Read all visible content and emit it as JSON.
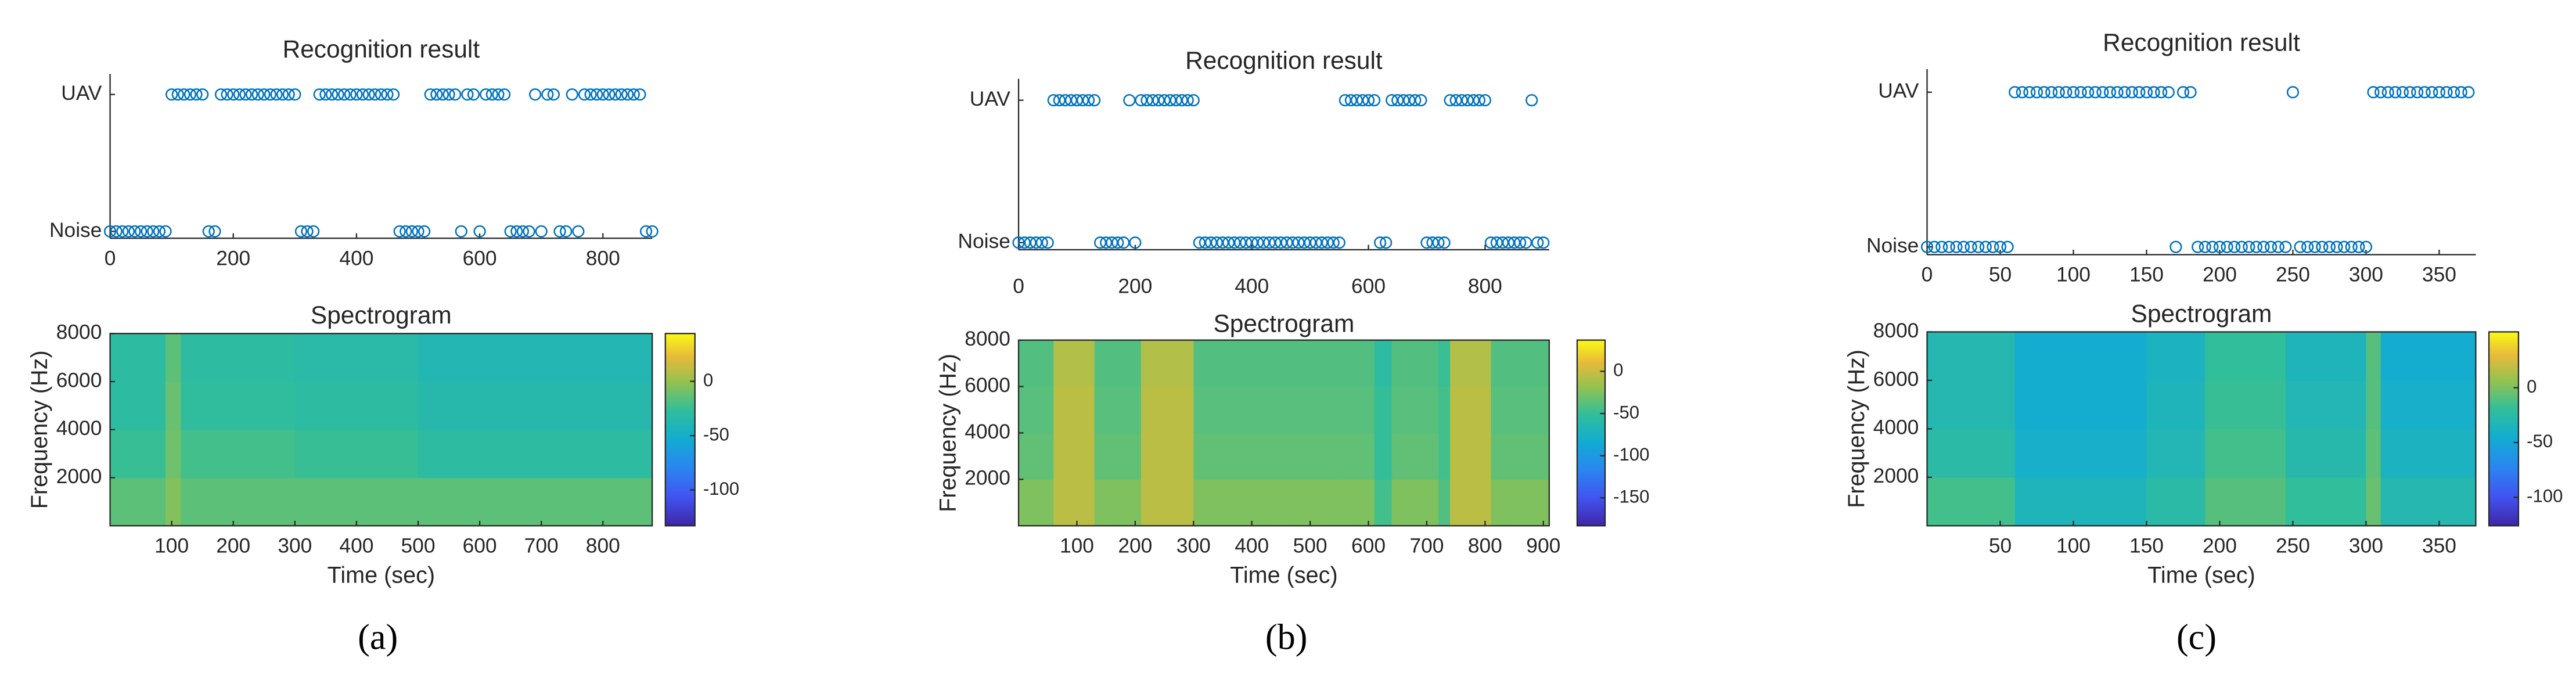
{
  "chart_data": [
    {
      "type": "scatter",
      "title": "Recognition result",
      "color": "#0072bd",
      "x": [
        0,
        10,
        20,
        30,
        40,
        50,
        60,
        70,
        80,
        90,
        100,
        110,
        120,
        130,
        140,
        150,
        160,
        170,
        180,
        190,
        200,
        210,
        220,
        230,
        240,
        250,
        260,
        270,
        280,
        290,
        300,
        310,
        320,
        330,
        340,
        350,
        360,
        370,
        380,
        390,
        400,
        410,
        420,
        430,
        440,
        450,
        460,
        470,
        480,
        490,
        500,
        510,
        520,
        530,
        540,
        550,
        560,
        570,
        580,
        590,
        600,
        610,
        620,
        630,
        640,
        650,
        660,
        670,
        680,
        690,
        700,
        710,
        720,
        730,
        740,
        750,
        760,
        770,
        780,
        790,
        800,
        810,
        820,
        830,
        840,
        850,
        860,
        870,
        880
      ],
      "values": [
        0,
        0,
        0,
        0,
        0,
        0,
        0,
        0,
        0,
        0,
        1,
        1,
        1,
        1,
        1,
        1,
        0,
        0,
        1,
        1,
        1,
        1,
        1,
        1,
        1,
        1,
        1,
        1,
        1,
        1,
        1,
        0,
        0,
        0,
        1,
        1,
        1,
        1,
        1,
        1,
        1,
        1,
        1,
        1,
        1,
        1,
        1,
        0,
        0,
        0,
        0,
        0,
        1,
        1,
        1,
        1,
        1,
        0,
        1,
        1,
        0,
        1,
        1,
        1,
        1,
        0,
        0,
        0,
        0,
        1,
        0,
        1,
        1,
        0,
        0,
        1,
        0,
        1,
        1,
        1,
        1,
        1,
        1,
        1,
        1,
        1,
        1,
        0,
        0
      ],
      "xlim": [
        0,
        880
      ],
      "xticks": [
        0,
        200,
        400,
        600,
        800
      ],
      "ylim": [
        -0.05,
        1.15
      ],
      "yticks": [
        {
          "value": 0,
          "label": "Noise"
        },
        {
          "value": 1,
          "label": "UAV"
        }
      ]
    },
    {
      "type": "heatmap",
      "title": "Spectrogram",
      "xlabel": "Time (sec)",
      "ylabel": "Frequency (Hz)",
      "colormap": "parula",
      "x_edges": [
        0,
        90,
        115,
        300,
        500,
        880
      ],
      "y_edges": [
        0,
        2000,
        4000,
        6000,
        8000
      ],
      "values": [
        [
          -15,
          -5,
          -15,
          -15,
          -15
        ],
        [
          -25,
          -10,
          -22,
          -25,
          -30
        ],
        [
          -30,
          -12,
          -28,
          -30,
          -35
        ],
        [
          -30,
          -15,
          -30,
          -33,
          -38
        ]
      ],
      "xlim": [
        0,
        880
      ],
      "xticks": [
        100,
        200,
        300,
        400,
        500,
        600,
        700,
        800
      ],
      "ylim": [
        0,
        8000
      ],
      "yticks": [
        2000,
        4000,
        6000,
        8000
      ],
      "clim": [
        -133,
        44
      ],
      "cticks": [
        0,
        -50,
        -100
      ]
    },
    {
      "type": "scatter",
      "title": "Recognition result",
      "color": "#0072bd",
      "x": [
        0,
        10,
        20,
        30,
        40,
        50,
        60,
        70,
        80,
        90,
        100,
        110,
        120,
        130,
        140,
        150,
        160,
        170,
        180,
        190,
        200,
        210,
        220,
        230,
        240,
        250,
        260,
        270,
        280,
        290,
        300,
        310,
        320,
        330,
        340,
        350,
        360,
        370,
        380,
        390,
        400,
        410,
        420,
        430,
        440,
        450,
        460,
        470,
        480,
        490,
        500,
        510,
        520,
        530,
        540,
        550,
        560,
        570,
        580,
        590,
        600,
        610,
        620,
        630,
        640,
        650,
        660,
        670,
        680,
        690,
        700,
        710,
        720,
        730,
        740,
        750,
        760,
        770,
        780,
        790,
        800,
        810,
        820,
        830,
        840,
        850,
        860,
        870,
        880,
        890,
        900
      ],
      "values": [
        0,
        0,
        0,
        0,
        0,
        0,
        1,
        1,
        1,
        1,
        1,
        1,
        1,
        1,
        0,
        0,
        0,
        0,
        0,
        1,
        0,
        1,
        1,
        1,
        1,
        1,
        1,
        1,
        1,
        1,
        1,
        0,
        0,
        0,
        0,
        0,
        0,
        0,
        0,
        0,
        0,
        0,
        0,
        0,
        0,
        0,
        0,
        0,
        0,
        0,
        0,
        0,
        0,
        0,
        0,
        0,
        1,
        1,
        1,
        1,
        1,
        1,
        0,
        0,
        1,
        1,
        1,
        1,
        1,
        1,
        0,
        0,
        0,
        0,
        1,
        1,
        1,
        1,
        1,
        1,
        1,
        0,
        0,
        0,
        0,
        0,
        0,
        0,
        1,
        0,
        0
      ],
      "xlim": [
        0,
        910
      ],
      "xticks": [
        0,
        200,
        400,
        600,
        800
      ],
      "ylim": [
        -0.05,
        1.15
      ],
      "yticks": [
        {
          "value": 0,
          "label": "Noise"
        },
        {
          "value": 1,
          "label": "UAV"
        }
      ]
    },
    {
      "type": "heatmap",
      "title": "Spectrogram",
      "xlabel": "Time (sec)",
      "ylabel": "Frequency (Hz)",
      "colormap": "parula",
      "x_edges": [
        0,
        60,
        130,
        210,
        300,
        550,
        610,
        640,
        720,
        740,
        810,
        910
      ],
      "y_edges": [
        0,
        2000,
        4000,
        6000,
        8000
      ],
      "values": [
        [
          -25,
          -5,
          -25,
          -5,
          -25,
          -25,
          -45,
          -25,
          -40,
          -5,
          -25
        ],
        [
          -35,
          -5,
          -35,
          -5,
          -35,
          -35,
          -50,
          -35,
          -45,
          -5,
          -35
        ],
        [
          -38,
          -5,
          -38,
          -5,
          -38,
          -38,
          -50,
          -38,
          -45,
          -5,
          -38
        ],
        [
          -40,
          -8,
          -40,
          -8,
          -40,
          -40,
          -55,
          -40,
          -48,
          -8,
          -40
        ]
      ],
      "xlim": [
        0,
        910
      ],
      "xticks": [
        100,
        200,
        300,
        400,
        500,
        600,
        700,
        800,
        900
      ],
      "ylim": [
        0,
        8000
      ],
      "yticks": [
        2000,
        4000,
        6000,
        8000
      ],
      "clim": [
        -183,
        37
      ],
      "cticks": [
        0,
        -50,
        -100,
        -150
      ]
    },
    {
      "type": "scatter",
      "title": "Recognition result",
      "color": "#0072bd",
      "x": [
        0,
        5,
        10,
        15,
        20,
        25,
        30,
        35,
        40,
        45,
        50,
        55,
        60,
        65,
        70,
        75,
        80,
        85,
        90,
        95,
        100,
        105,
        110,
        115,
        120,
        125,
        130,
        135,
        140,
        145,
        150,
        155,
        160,
        165,
        170,
        175,
        180,
        185,
        190,
        195,
        200,
        205,
        210,
        215,
        220,
        225,
        230,
        235,
        240,
        245,
        250,
        255,
        260,
        265,
        270,
        275,
        280,
        285,
        290,
        295,
        300,
        305,
        310,
        315,
        320,
        325,
        330,
        335,
        340,
        345,
        350,
        355,
        360,
        365,
        370
      ],
      "values": [
        0,
        0,
        0,
        0,
        0,
        0,
        0,
        0,
        0,
        0,
        0,
        0,
        1,
        1,
        1,
        1,
        1,
        1,
        1,
        1,
        1,
        1,
        1,
        1,
        1,
        1,
        1,
        1,
        1,
        1,
        1,
        1,
        1,
        1,
        0,
        1,
        1,
        0,
        0,
        0,
        0,
        0,
        0,
        0,
        0,
        0,
        0,
        0,
        0,
        0,
        1,
        0,
        0,
        0,
        0,
        0,
        0,
        0,
        0,
        0,
        0,
        1,
        1,
        1,
        1,
        1,
        1,
        1,
        1,
        1,
        1,
        1,
        1,
        1,
        1
      ],
      "xlim": [
        0,
        375
      ],
      "xticks": [
        0,
        50,
        100,
        150,
        200,
        250,
        300,
        350
      ],
      "ylim": [
        -0.05,
        1.15
      ],
      "yticks": [
        {
          "value": 0,
          "label": "Noise"
        },
        {
          "value": 1,
          "label": "UAV"
        }
      ]
    },
    {
      "type": "heatmap",
      "title": "Spectrogram",
      "xlabel": "Time (sec)",
      "ylabel": "Frequency (Hz)",
      "colormap": "parula",
      "x_edges": [
        0,
        60,
        150,
        190,
        245,
        300,
        310,
        375
      ],
      "y_edges": [
        0,
        2000,
        4000,
        6000,
        8000
      ],
      "values": [
        [
          -15,
          -35,
          -25,
          -10,
          -20,
          -5,
          -30
        ],
        [
          -25,
          -42,
          -32,
          -15,
          -28,
          -8,
          -38
        ],
        [
          -30,
          -45,
          -35,
          -18,
          -32,
          -10,
          -42
        ],
        [
          -30,
          -45,
          -38,
          -20,
          -35,
          -10,
          -45
        ]
      ],
      "xlim": [
        0,
        375
      ],
      "xticks": [
        50,
        100,
        150,
        200,
        250,
        300,
        350
      ],
      "ylim": [
        0,
        8000
      ],
      "yticks": [
        2000,
        4000,
        6000,
        8000
      ],
      "clim": [
        -126,
        51
      ],
      "cticks": [
        0,
        -50,
        -100
      ]
    }
  ],
  "captions": [
    "(a)",
    "(b)",
    "(c)"
  ]
}
